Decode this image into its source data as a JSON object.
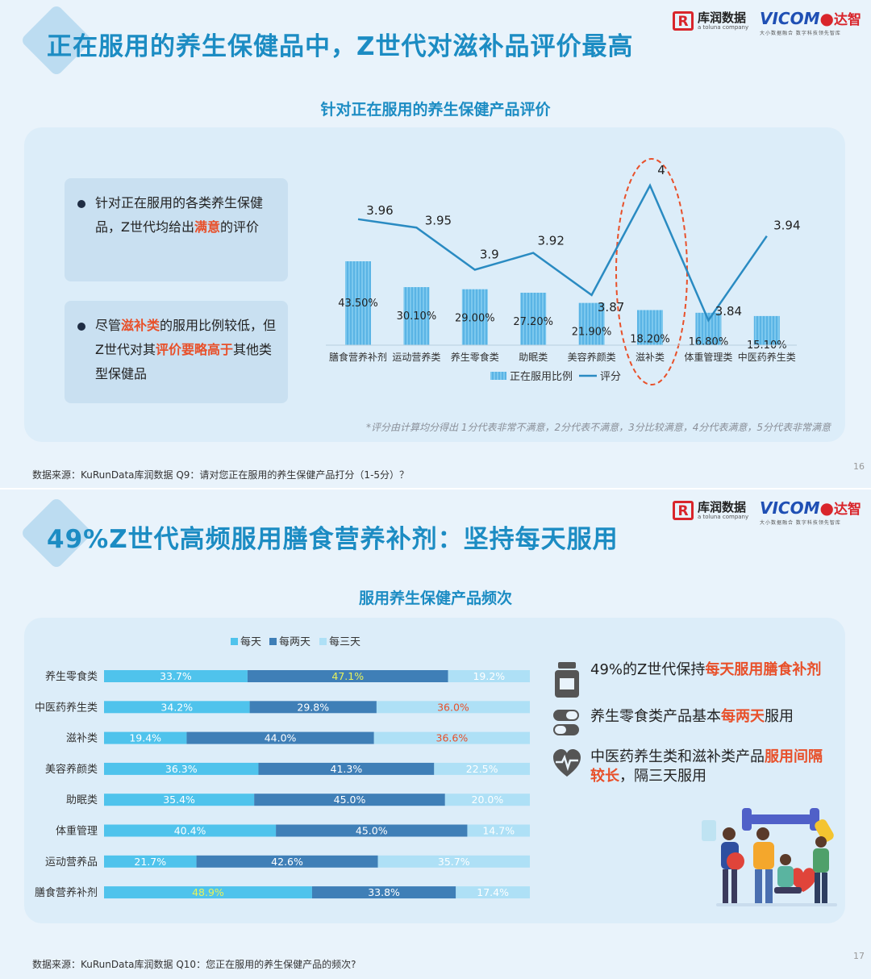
{
  "slide1": {
    "title": "正在服用的养生保健品中，Z世代对滋补品评价最高",
    "chart_title": "针对正在服用的养生保健产品评价",
    "callouts": [
      {
        "before": "针对正在服用的各类养生保健品，Z世代均给出",
        "hl": "满意",
        "after": "的评价"
      },
      {
        "a": "尽管",
        "hl1": "滋补类",
        "b": "的服用比例较低，但Z世代对其",
        "hl2": "评价要略高于",
        "c": "其他类型保健品"
      }
    ],
    "note": "*评分由计算均分得出 1分代表非常不满意，2分代表不满意，3分比较满意，4分代表满意，5分代表非常满意",
    "source": "数据来源：KuRunData库润数据 Q9：请对您正在服用的养生保健产品打分（1-5分）？",
    "page_number": "16"
  },
  "slide2": {
    "title": "49%Z世代高频服用膳食营养补剂：坚持每天服用",
    "chart_title": "服用养生保健产品频次",
    "insights": [
      {
        "icon": "supplement-bottle-icon",
        "before": "49%的Z世代保持",
        "hl": "每天服用膳食补剂",
        "after": ""
      },
      {
        "icon": "capsule-pill-icon",
        "before": "养生零食类产品基本",
        "hl": "每两天",
        "after": "服用"
      },
      {
        "icon": "heartbeat-icon",
        "before": "中医药养生类和滋补类产品",
        "hl": "服用间隔较长",
        "after": "，隔三天服用"
      }
    ],
    "source": "数据来源：KuRunData库润数据 Q10：您正在服用的养生保健产品的频次?",
    "page_number": "17"
  },
  "logos": {
    "kurun_main": "库润数据",
    "kurun_sub": "a toluna company",
    "vicom_main": "VICOM",
    "vicom_cn": "达智",
    "vicom_sub": "大小数据融合  数字科技领先智库"
  },
  "colors": {
    "accent": "#1c8cc3",
    "highlight": "#e8502a",
    "bar": "#5ab4e5",
    "daily": "#4fc3ec",
    "every_two": "#3f7fb7",
    "every_three": "#aee0f6",
    "circle": "#e8502a"
  },
  "chart_data": [
    {
      "type": "bar+line",
      "title": "针对正在服用的养生保健产品评价",
      "categories": [
        "膳食营养补剂",
        "运动营养类",
        "养生零食类",
        "助眠类",
        "美容养颜类",
        "滋补类",
        "体重管理类",
        "中医药养生类"
      ],
      "series": [
        {
          "name": "正在服用比例",
          "type": "bar",
          "values": [
            43.5,
            30.1,
            29.0,
            27.2,
            21.9,
            18.2,
            16.8,
            15.1
          ],
          "labels": [
            "43.50%",
            "30.10%",
            "29.00%",
            "27.20%",
            "21.90%",
            "18.20%",
            "16.80%",
            "15.10%"
          ]
        },
        {
          "name": "评分",
          "type": "line",
          "values": [
            3.96,
            3.95,
            3.9,
            3.92,
            3.87,
            4,
            3.84,
            3.94
          ],
          "labels": [
            "3.96",
            "3.95",
            "3.9",
            "3.92",
            "3.87",
            "4",
            "3.84",
            "3.94"
          ]
        }
      ],
      "highlight_category": "滋补类",
      "legend": "bottom"
    },
    {
      "type": "stacked-bar-horizontal",
      "title": "服用养生保健产品频次",
      "legend": "top",
      "categories": [
        "养生零食类",
        "中医药养生类",
        "滋补类",
        "美容养颜类",
        "助眠类",
        "体重管理",
        "运动营养品",
        "膳食营养补剂"
      ],
      "series": [
        {
          "name": "每天",
          "values": [
            33.7,
            34.2,
            19.4,
            36.3,
            35.4,
            40.4,
            21.7,
            48.9
          ],
          "labels": [
            "33.7%",
            "34.2%",
            "19.4%",
            "36.3%",
            "35.4%",
            "40.4%",
            "21.7%",
            "48.9%"
          ]
        },
        {
          "name": "每两天",
          "values": [
            47.1,
            29.8,
            44.0,
            41.3,
            45.0,
            45.0,
            42.6,
            33.8
          ],
          "labels": [
            "47.1%",
            "29.8%",
            "44.0%",
            "41.3%",
            "45.0%",
            "45.0%",
            "42.6%",
            "33.8%"
          ]
        },
        {
          "name": "每三天",
          "values": [
            19.2,
            36.0,
            36.6,
            22.5,
            20.0,
            14.7,
            35.7,
            17.4
          ],
          "labels": [
            "19.2%",
            "36.0%",
            "36.6%",
            "22.5%",
            "20.0%",
            "14.7%",
            "35.7%",
            "17.4%"
          ]
        }
      ],
      "highlighted_labels": [
        [
          "养生零食类",
          "每两天"
        ],
        [
          "中医药养生类",
          "每三天"
        ],
        [
          "滋补类",
          "每三天"
        ],
        [
          "膳食营养补剂",
          "每天"
        ]
      ]
    }
  ]
}
